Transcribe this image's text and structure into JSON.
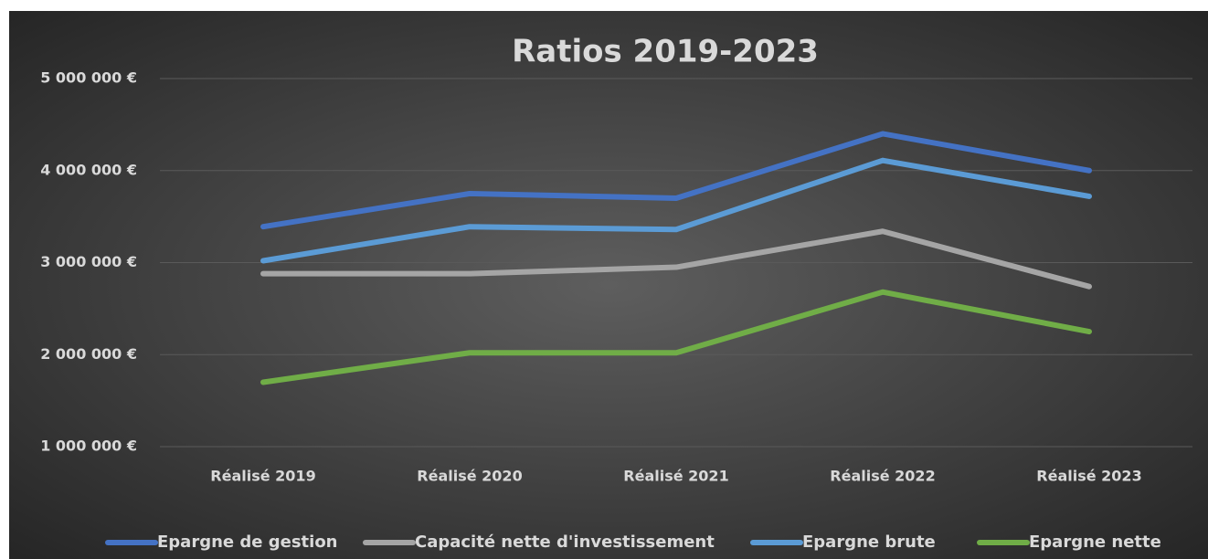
{
  "chart_data": {
    "type": "line",
    "title": "Ratios 2019-2023",
    "categories": [
      "Réalisé 2019",
      "Réalisé 2020",
      "Réalisé 2021",
      "Réalisé 2022",
      "Réalisé 2023"
    ],
    "series": [
      {
        "name": "Epargne de gestion",
        "color": "#4472c4",
        "values": [
          3390000,
          3750000,
          3700000,
          4400000,
          4000000
        ]
      },
      {
        "name": "Capacité nette d'investissement",
        "color": "#a5a5a5",
        "values": [
          2880000,
          2880000,
          2950000,
          3340000,
          2740000
        ]
      },
      {
        "name": "Epargne brute",
        "color": "#5b9bd5",
        "values": [
          3020000,
          3390000,
          3360000,
          4110000,
          3720000
        ]
      },
      {
        "name": "Epargne nette",
        "color": "#70ad47",
        "values": [
          1700000,
          2020000,
          2020000,
          2680000,
          2250000
        ]
      }
    ],
    "ylim": [
      1000000,
      5000000
    ],
    "yticks": [
      {
        "value": 1000000,
        "label": "1 000 000 €"
      },
      {
        "value": 2000000,
        "label": "2 000 000 €"
      },
      {
        "value": 3000000,
        "label": "3 000 000 €"
      },
      {
        "value": 4000000,
        "label": "4 000 000 €"
      },
      {
        "value": 5000000,
        "label": "5 000 000 €"
      }
    ],
    "grid": true,
    "legend": "bottom"
  }
}
